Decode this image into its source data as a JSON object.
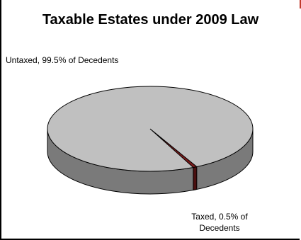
{
  "chart_data": {
    "type": "pie",
    "title": "Taxable Estates under 2009 Law",
    "slices": [
      {
        "label": "Untaxed, 99.5% of Decedents",
        "value": 99.5,
        "color": "#c0c0c0"
      },
      {
        "label": "Taxed, 0.5% of Decedents",
        "value": 0.5,
        "color": "#7a1a1a"
      }
    ],
    "style": "3d"
  }
}
